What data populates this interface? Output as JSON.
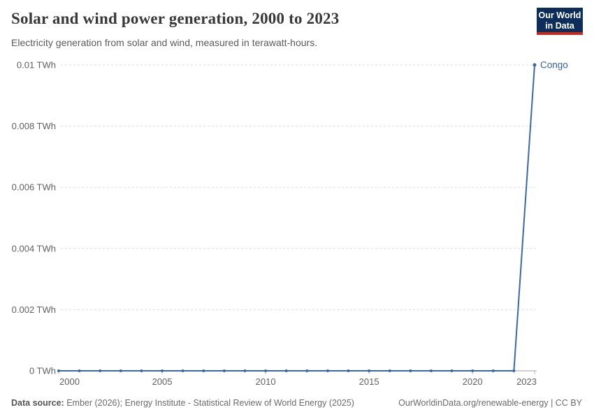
{
  "header": {
    "title": "Solar and wind power generation, 2000 to 2023",
    "subtitle": "Electricity generation from solar and wind, measured in terawatt-hours.",
    "logo": {
      "line1": "Our World",
      "line2": "in Data"
    }
  },
  "chart_data": {
    "type": "line",
    "title": "Solar and wind power generation, 2000 to 2023",
    "xlabel": "",
    "ylabel": "",
    "unit": "TWh",
    "xlim": [
      2000,
      2023
    ],
    "ylim": [
      0,
      0.01
    ],
    "grid": "horizontal-dashed",
    "legend_position": "end-of-line-label",
    "x": [
      2000,
      2001,
      2002,
      2003,
      2004,
      2005,
      2006,
      2007,
      2008,
      2009,
      2010,
      2011,
      2012,
      2013,
      2014,
      2015,
      2016,
      2017,
      2018,
      2019,
      2020,
      2021,
      2022,
      2023
    ],
    "series": [
      {
        "name": "Congo",
        "color": "#3a67ad",
        "values": [
          0,
          0,
          0,
          0,
          0,
          0,
          0,
          0,
          0,
          0,
          0,
          0,
          0,
          0,
          0,
          0,
          0,
          0,
          0,
          0,
          0,
          0,
          0,
          0.01
        ]
      }
    ],
    "x_ticks": [
      {
        "year": 2000,
        "label": "2000"
      },
      {
        "year": 2005,
        "label": "2005"
      },
      {
        "year": 2010,
        "label": "2010"
      },
      {
        "year": 2015,
        "label": "2015"
      },
      {
        "year": 2020,
        "label": "2020"
      },
      {
        "year": 2023,
        "label": "2023"
      }
    ],
    "y_ticks": [
      {
        "value": 0,
        "label": "0 TWh"
      },
      {
        "value": 0.002,
        "label": "0.002 TWh"
      },
      {
        "value": 0.004,
        "label": "0.004 TWh"
      },
      {
        "value": 0.006,
        "label": "0.006 TWh"
      },
      {
        "value": 0.008,
        "label": "0.008 TWh"
      },
      {
        "value": 0.01,
        "label": "0.01 TWh"
      }
    ]
  },
  "footer": {
    "source_label": "Data source:",
    "source_text": " Ember (2026); Energy Institute - Statistical Review of World Energy (2025)",
    "right_text": "OurWorldinData.org/renewable-energy | CC BY"
  },
  "colors": {
    "line": "#3a67ad",
    "entity_label": "#3360a9",
    "grid": "#dedede",
    "axis": "#a0a0a0",
    "tick_text": "#606060",
    "logo_bg": "#0d2e5b",
    "logo_red": "#c62a1d"
  }
}
